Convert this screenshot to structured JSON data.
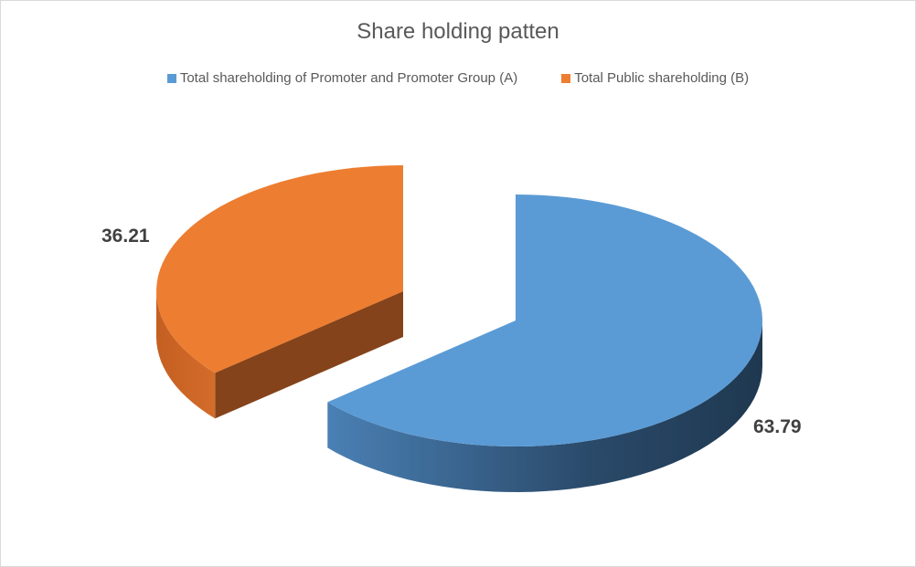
{
  "chart_data": {
    "type": "pie",
    "style": "3d-exploded",
    "title": "Share holding patten",
    "categories": [
      "Total shareholding of Promoter and Promoter Group (A)",
      "Total Public shareholding (B)"
    ],
    "values": [
      63.79,
      36.21
    ],
    "data_labels": [
      "63.79",
      "36.21"
    ],
    "colors": [
      "#5B9BD5",
      "#ED7D31"
    ],
    "legend_position": "top"
  }
}
